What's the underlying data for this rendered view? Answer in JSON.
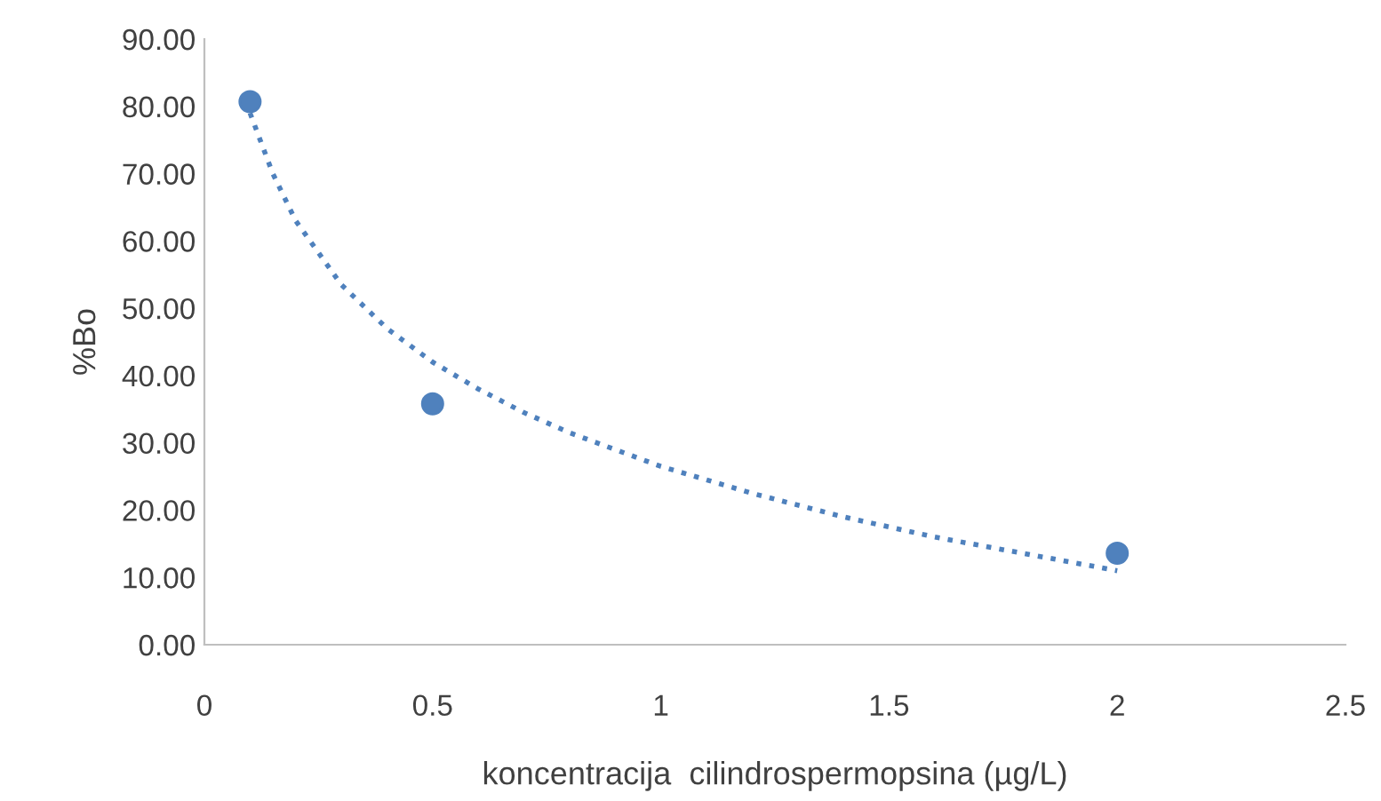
{
  "chart_data": {
    "type": "scatter",
    "xlabel": "koncentracija  cilindrospermopsina (µg/L)",
    "ylabel": "%Bo",
    "series": [
      {
        "color": "#4f81bd",
        "marker": "circle",
        "x": [
          0.1,
          0.5,
          2
        ],
        "values": [
          80.7,
          35.8,
          13.6
        ]
      },
      {
        "type": "line",
        "color": "#4f81bd",
        "line_style": "dotted",
        "marker": "none",
        "x": [
          0.1,
          0.15,
          0.2,
          0.3,
          0.4,
          0.5,
          0.6,
          0.7,
          0.8,
          1,
          1.2,
          1.4,
          1.6,
          1.8,
          2
        ],
        "values": [
          79,
          70,
          63,
          53.5,
          47,
          42,
          38,
          34.5,
          31.5,
          26.5,
          22.5,
          19,
          16,
          13.5,
          11
        ]
      }
    ],
    "xlim": [
      0,
      2.5
    ],
    "xticks": [
      0,
      0.5,
      1,
      1.5,
      2,
      2.5
    ],
    "ylim": [
      0,
      90
    ],
    "yticks": [
      {
        "value": 0,
        "label": "0.00"
      },
      {
        "value": 10,
        "label": "10.00"
      },
      {
        "value": 20,
        "label": "20.00"
      },
      {
        "value": 30,
        "label": "30.00"
      },
      {
        "value": 40,
        "label": "40.00"
      },
      {
        "value": 50,
        "label": "50.00"
      },
      {
        "value": 60,
        "label": "60.00"
      },
      {
        "value": 70,
        "label": "70.00"
      },
      {
        "value": 80,
        "label": "80.00"
      },
      {
        "value": 90,
        "label": "90.00"
      }
    ],
    "grid": false,
    "legend": false
  }
}
